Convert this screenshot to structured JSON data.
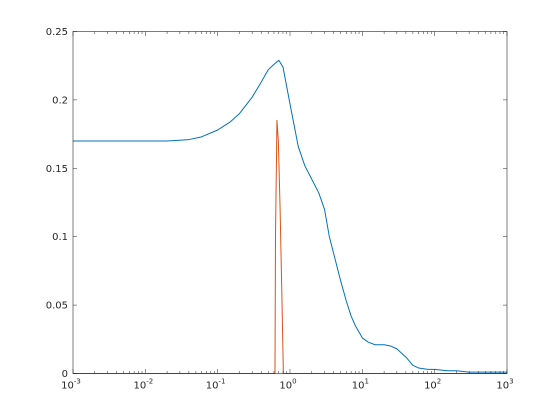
{
  "chart_data": {
    "type": "line",
    "title": "",
    "xlabel": "",
    "ylabel": "",
    "xscale": "log",
    "xlim": [
      0.001,
      1000
    ],
    "ylim": [
      0,
      0.25
    ],
    "grid": false,
    "legend": "none",
    "x_ticks": [
      {
        "value": 0.001,
        "base": "10",
        "exp": "-3"
      },
      {
        "value": 0.01,
        "base": "10",
        "exp": "-2"
      },
      {
        "value": 0.1,
        "base": "10",
        "exp": "-1"
      },
      {
        "value": 1,
        "base": "10",
        "exp": "0"
      },
      {
        "value": 10,
        "base": "10",
        "exp": "1"
      },
      {
        "value": 100,
        "base": "10",
        "exp": "2"
      },
      {
        "value": 1000,
        "base": "10",
        "exp": "3"
      }
    ],
    "y_ticks": [
      {
        "value": 0,
        "label": "0"
      },
      {
        "value": 0.05,
        "label": "0.05"
      },
      {
        "value": 0.1,
        "label": "0.1"
      },
      {
        "value": 0.15,
        "label": "0.15"
      },
      {
        "value": 0.2,
        "label": "0.2"
      },
      {
        "value": 0.25,
        "label": "0.25"
      }
    ],
    "series": [
      {
        "color": "#0072BD",
        "x": [
          0.001,
          0.005,
          0.02,
          0.04,
          0.06,
          0.1,
          0.15,
          0.2,
          0.3,
          0.4,
          0.5,
          0.6,
          0.7,
          0.8,
          1.0,
          1.3,
          1.6,
          2.0,
          2.5,
          3.0,
          3.5,
          4.0,
          5.0,
          6.0,
          7.0,
          8.0,
          10,
          12,
          15,
          20,
          25,
          30,
          40,
          50,
          60,
          80,
          100,
          150,
          200,
          300,
          1000
        ],
        "y": [
          0.17,
          0.17,
          0.17,
          0.171,
          0.173,
          0.178,
          0.184,
          0.19,
          0.202,
          0.213,
          0.222,
          0.226,
          0.229,
          0.224,
          0.197,
          0.166,
          0.152,
          0.142,
          0.132,
          0.12,
          0.1,
          0.088,
          0.068,
          0.053,
          0.042,
          0.035,
          0.026,
          0.023,
          0.021,
          0.021,
          0.02,
          0.018,
          0.012,
          0.006,
          0.004,
          0.003,
          0.003,
          0.002,
          0.002,
          0.001,
          0.001
        ]
      },
      {
        "color": "#D95319",
        "x": [
          0.001,
          0.62,
          0.63,
          0.66,
          0.69,
          0.73,
          0.77,
          0.81,
          1000
        ],
        "y": [
          0,
          0,
          0.1,
          0.185,
          0.17,
          0.12,
          0.06,
          0,
          0
        ]
      }
    ]
  }
}
